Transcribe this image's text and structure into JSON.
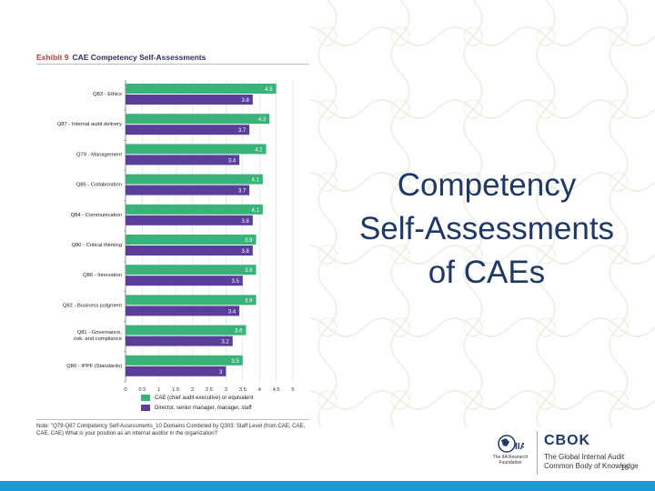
{
  "exhibit": {
    "label": "Exhibit 9",
    "title": "CAE Competency Self-Assessments"
  },
  "slide_title_lines": [
    "Competency",
    "Self-Assessments",
    "of CAEs"
  ],
  "note": "Note: \"Q79-Q87 Competency Self-Assessments_10 Domains Combined by Q303: Staff Level (from CAE, CAE, CAE, CAE) What is your position as an internal auditor in the organization?",
  "logos": {
    "iia_text": "The IIA Research Foundation",
    "cbok": "CBOK",
    "cbok_sub_1": "The Global Internal Audit",
    "cbok_sub_2": "Common Body of Knowledge"
  },
  "page_number": "16",
  "colors": {
    "cae": "#3ab37a",
    "director": "#5b3e99",
    "title": "#1f3864",
    "bottom_bar": "#1d9ad6"
  },
  "chart_data": {
    "type": "bar",
    "orientation": "horizontal",
    "title": "CAE Competency Self-Assessments",
    "categories": [
      "Q83 - Ethics",
      "Q87 - Internal audit delivery",
      "Q79 - Management",
      "Q85 - Collaboration",
      "Q84 - Communication",
      "Q80 - Critical thinking",
      "Q86 - Innovation",
      "Q82 - Business judgment",
      "Q81 - Governance, risk, and compliance",
      "Q80 - IPPF (Standards)"
    ],
    "category_lines": [
      [
        "Q83 - Ethics"
      ],
      [
        "Q87 - Internal audit delivery"
      ],
      [
        "Q79 - Management"
      ],
      [
        "Q85 - Collaboration"
      ],
      [
        "Q84 - Communication"
      ],
      [
        "Q80 - Critical thinking"
      ],
      [
        "Q86 - Innovation"
      ],
      [
        "Q82 - Business judgment"
      ],
      [
        "Q81 - Governance,",
        "risk, and compliance"
      ],
      [
        "Q80 - IPPF (Standards)"
      ]
    ],
    "series": [
      {
        "name": "CAE (chief audit executive) or equivalent",
        "values": [
          4.5,
          4.3,
          4.2,
          4.1,
          4.1,
          3.9,
          3.9,
          3.9,
          3.6,
          3.5
        ]
      },
      {
        "name": "Director, senior manager, manager, staff",
        "values": [
          3.8,
          3.7,
          3.4,
          3.7,
          3.8,
          3.8,
          3.5,
          3.4,
          3.2,
          3
        ]
      }
    ],
    "xlim": [
      0,
      5
    ],
    "xticks": [
      "0",
      "0.5",
      "1",
      "1.5",
      "2",
      "2.5",
      "3",
      "3.5",
      "4",
      "4.5",
      "5"
    ],
    "grid": true,
    "legend": "bottom"
  }
}
